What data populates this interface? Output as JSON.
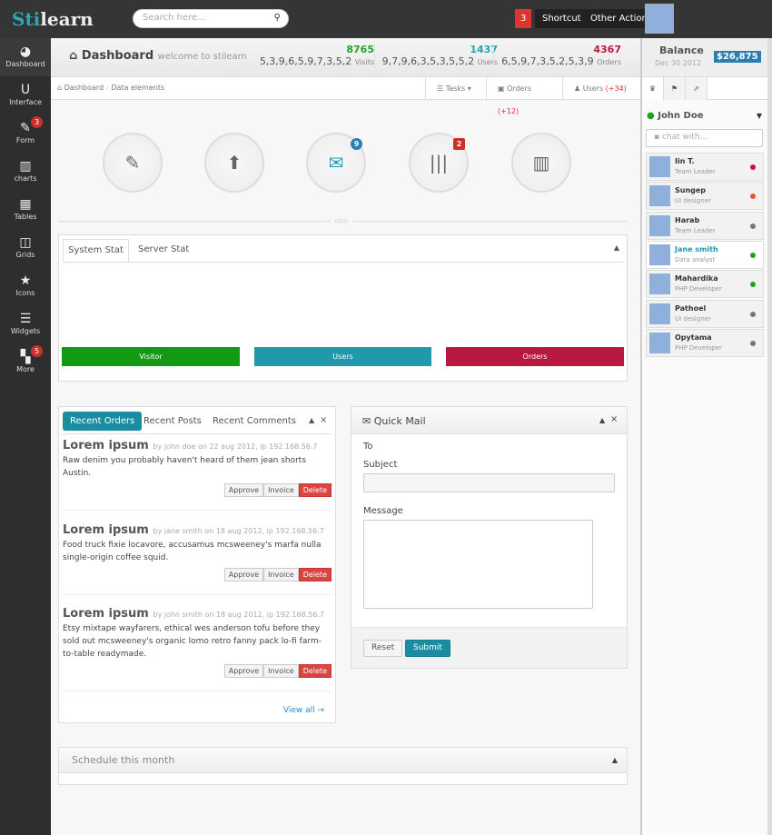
{
  "topbar": {
    "logo_a": "Sti",
    "logo_b": "learn",
    "search_placeholder": "Search here...",
    "search_icon": "magnifier-icon",
    "notif_count": "3",
    "shortcut": "Shortcut",
    "other_action": "Other Action"
  },
  "sidebar": {
    "items": [
      {
        "label": "Dashboard",
        "icon": "dashboard-icon",
        "glyph": "◕"
      },
      {
        "label": "Interface",
        "icon": "magnet-icon",
        "glyph": "U"
      },
      {
        "label": "Form",
        "icon": "edit-icon",
        "glyph": "✎",
        "badge": "3"
      },
      {
        "label": "charts",
        "icon": "chart-icon",
        "glyph": "▥"
      },
      {
        "label": "Tables",
        "icon": "table-icon",
        "glyph": "▦"
      },
      {
        "label": "Grids",
        "icon": "grid-icon",
        "glyph": "◫"
      },
      {
        "label": "Icons",
        "icon": "star-icon",
        "glyph": "★"
      },
      {
        "label": "Widgets",
        "icon": "list-icon",
        "glyph": "☰"
      },
      {
        "label": "More",
        "icon": "tiles-icon",
        "glyph": "▚",
        "badge": "5"
      }
    ]
  },
  "header": {
    "title": "Dashboard",
    "subtitle": "welcome to stilearn",
    "stats": [
      {
        "value": "8765",
        "spark": "5,3,9,6,5,9,7,3,5,2",
        "label": "Visits",
        "color": "#2a9d2a"
      },
      {
        "value": "1437",
        "spark": "9,7,9,6,3,5,3,5,5,2",
        "label": "Users",
        "color": "#2aa0b5"
      },
      {
        "value": "4367",
        "spark": "6,5,9,7,3,5,2,5,3,9",
        "label": "Orders",
        "color": "#c0193f"
      }
    ]
  },
  "breadcrumb": {
    "home": "Dashboard",
    "current": "Data elements",
    "tasks": "Tasks",
    "orders": "Orders",
    "orders_count": "(+12)",
    "users": "Users",
    "users_count": "(+34)"
  },
  "shortcuts": [
    {
      "icon": "edit-icon",
      "glyph": "✎"
    },
    {
      "icon": "upload-icon",
      "glyph": "⬆"
    },
    {
      "icon": "mail-icon",
      "glyph": "✉",
      "badge": "9",
      "badge_color": "#2a7fb0"
    },
    {
      "icon": "barcode-icon",
      "glyph": "|||",
      "badge": "2",
      "badge_color": "#c9302c"
    },
    {
      "icon": "chart-icon",
      "glyph": "▥"
    }
  ],
  "stats_box": {
    "tabs": [
      "System Stat",
      "Server Stat"
    ],
    "bars": [
      {
        "label": "Visitor",
        "color": "#139a13"
      },
      {
        "label": "Users",
        "color": "#2198ab"
      },
      {
        "label": "Orders",
        "color": "#b8173e"
      }
    ]
  },
  "recent": {
    "tabs": [
      "Recent Orders",
      "Recent Posts",
      "Recent Comments"
    ],
    "posts": [
      {
        "title": "Lorem ipsum",
        "meta": "by john doe on 22 aug 2012, ip 192.168.56.7",
        "body": "Raw denim you probably haven't heard of them jean shorts Austin."
      },
      {
        "title": "Lorem ipsum",
        "meta": "by jane smith on 18 aug 2012, ip 192.168.56.7",
        "body": "Food truck fixie locavore, accusamus mcsweeney's marfa nulla single-origin coffee squid."
      },
      {
        "title": "Lorem ipsum",
        "meta": "by john smith on 18 aug 2012, ip 192.168.56.7",
        "body": "Etsy mixtape wayfarers, ethical wes anderson tofu before they sold out mcsweeney's organic lomo retro fanny pack lo-fi farm-to-table readymade."
      }
    ],
    "approve": "Approve",
    "invoice": "Invoice",
    "delete": "Delete",
    "view_all": "View all →"
  },
  "mail": {
    "title": "Quick Mail",
    "to": "To",
    "subject": "Subject",
    "message": "Message",
    "reset": "Reset",
    "submit": "Submit"
  },
  "schedule": {
    "title": "Schedule this month"
  },
  "right": {
    "balance_label": "Balance",
    "date": "Dec 30 2012",
    "amount": "$26,875",
    "user": "John Doe",
    "chat_placeholder": "chat with...",
    "contacts": [
      {
        "name": "Iin T.",
        "role": "Team Leader",
        "status": "#d0143f"
      },
      {
        "name": "Sungep",
        "role": "UI designer",
        "status": "#e8562a"
      },
      {
        "name": "Harab",
        "role": "Team Leader",
        "status": "#777777"
      },
      {
        "name": "Jane smith",
        "role": "Data analyst",
        "status": "#1aa51a",
        "active": true
      },
      {
        "name": "Mahardika",
        "role": "PHP Developer",
        "status": "#1aa51a"
      },
      {
        "name": "Pathoel",
        "role": "UI designer",
        "status": "#777777"
      },
      {
        "name": "Opytama",
        "role": "PHP Developer",
        "status": "#777777"
      }
    ]
  }
}
